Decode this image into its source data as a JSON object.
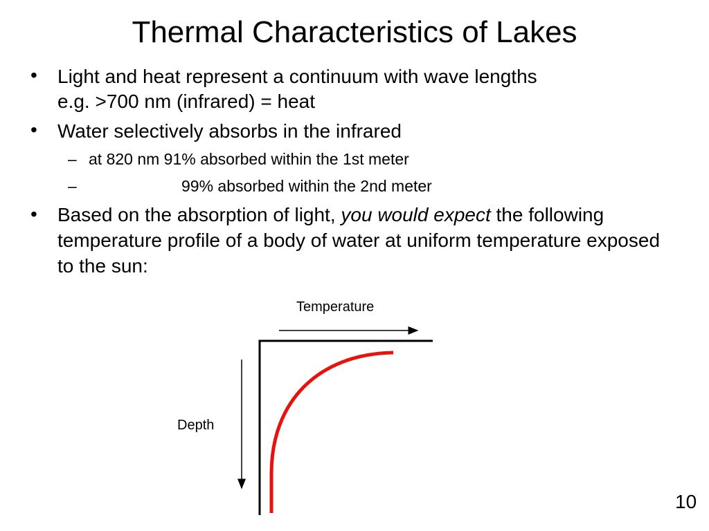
{
  "slide": {
    "title": "Thermal Characteristics of Lakes",
    "bullets": [
      {
        "lines": [
          "Light and heat represent a continuum with wave lengths",
          "e.g.  >700 nm (infrared) = heat"
        ]
      },
      {
        "lines": [
          "Water selectively absorbs in the infrared"
        ],
        "sub": [
          "at 820 nm 91% absorbed within the 1st meter",
          "99% absorbed within the 2nd meter"
        ]
      },
      {
        "parts": [
          "Based on the absorption of light, ",
          "you would expect",
          " the following temperature profile of a body of water at uniform temperature exposed to the sun:"
        ]
      }
    ],
    "diagram": {
      "x_label": "Temperature",
      "y_label": "Depth"
    },
    "page_number": "10"
  }
}
